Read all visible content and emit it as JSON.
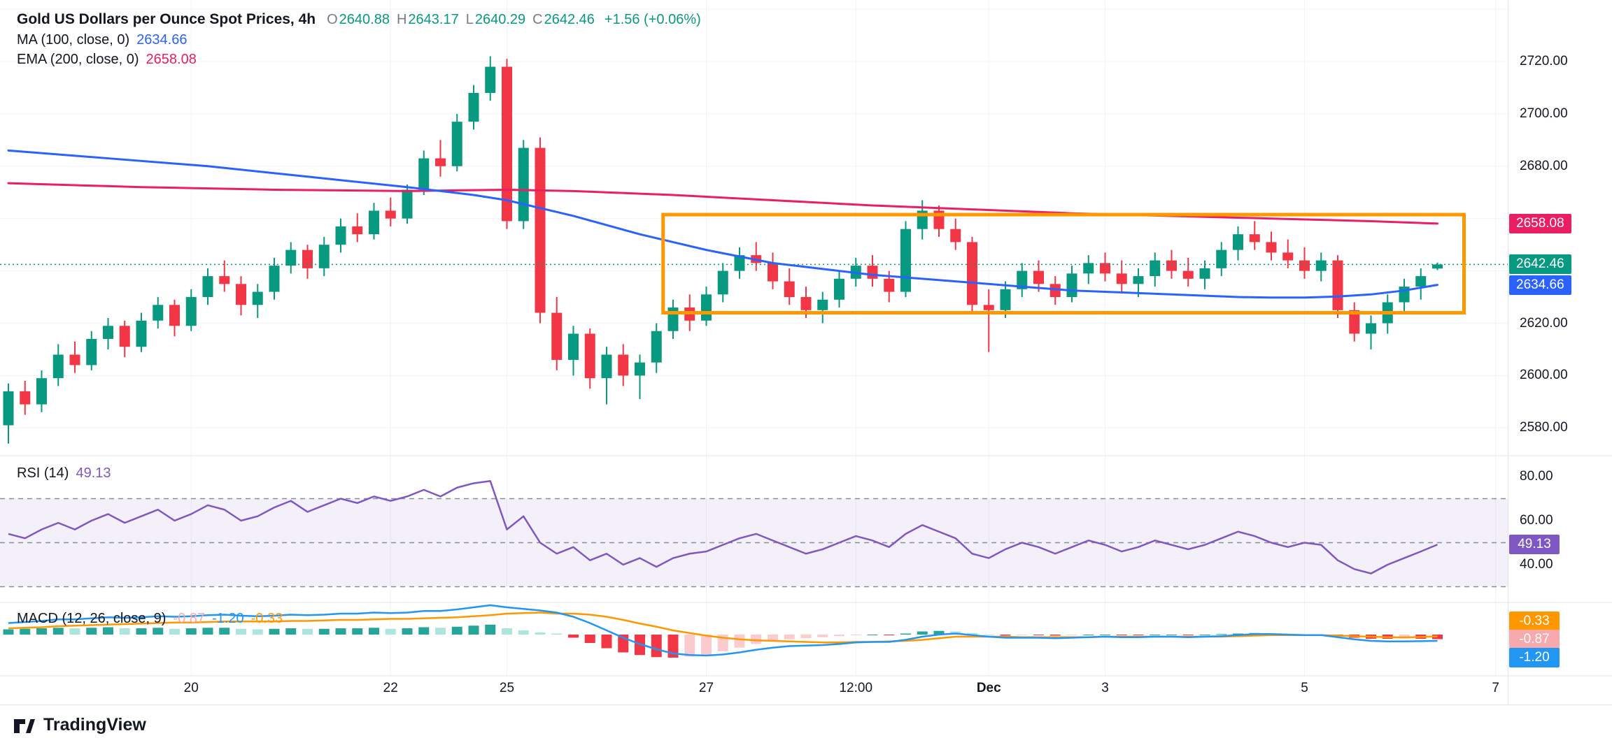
{
  "main_header": {
    "title": "Gold US Dollars per Ounce Spot Prices, 4h",
    "ohlc_labels": {
      "o": "O",
      "h": "H",
      "l": "L",
      "c": "C"
    },
    "ohlc": {
      "o": "2640.88",
      "h": "2643.17",
      "l": "2640.29",
      "c": "2642.46"
    },
    "change": "+1.56 (+0.06%)",
    "ma": {
      "label": "MA (100, close, 0)",
      "value": "2634.66"
    },
    "ema": {
      "label": "EMA (200, close, 0)",
      "value": "2658.08"
    }
  },
  "rsi_header": {
    "label": "RSI (14)",
    "value": "49.13"
  },
  "macd_header": {
    "label": "MACD (12, 26, close, 9)",
    "hist": "-0.87",
    "macd": "-1.20",
    "signal": "-0.33"
  },
  "scale_badges": {
    "ema": "2658.08",
    "close": "2642.46",
    "ma": "2634.66",
    "rsi": "49.13",
    "signal": "-0.33",
    "hist": "-0.87",
    "macd": "-1.20"
  },
  "footer": {
    "brand": "TradingView"
  },
  "colors": {
    "up": "#089981",
    "down": "#f23645",
    "ma": "#2962ff",
    "ema": "#e91e63",
    "rsi": "#7e57c2",
    "macd": "#2196f3",
    "signal": "#ff9800",
    "hist_up": "#26a69a",
    "hist_up_weak": "#ace5dc",
    "hist_down": "#f23645",
    "hist_down_weak": "#fccbcd",
    "rect": "#ff9800",
    "grid": "#f0f3fa",
    "divider": "#e0e3eb",
    "dashed": "#8a8e9b",
    "band_fill": "rgba(126,87,194,0.09)",
    "axis_text": "#131722",
    "header_text": "#131722",
    "muted_text": "#787b86",
    "close_line": "#089981",
    "background": "#ffffff",
    "badge_close_bg": "#089981",
    "badge_ma_bg": "#2962ff",
    "badge_ema_bg": "#e91e63",
    "badge_rsi_bg": "#7e57c2",
    "badge_signal_bg": "#ff9800",
    "badge_hist_bg": "#f8a9ae",
    "badge_macd_bg": "#2196f3"
  },
  "chart_data": {
    "type": "candlestick",
    "title": "Gold US Dollars per Ounce Spot Prices",
    "interval": "4h",
    "price_range_visible": [
      2568,
      2744
    ],
    "last_close": 2642.46,
    "last_candle": {
      "open": 2640.88,
      "high": 2643.17,
      "low": 2640.29,
      "close": 2642.46,
      "change": 1.56,
      "change_pct": 0.06
    },
    "indicator_values": {
      "ma100": 2634.66,
      "ema200": 2658.08,
      "rsi": 49.13,
      "macd": -1.2,
      "signal": -0.33,
      "histogram": -0.87
    },
    "price_axis_ticks": [
      {
        "label": "2720.00",
        "value": 2720
      },
      {
        "label": "2700.00",
        "value": 2700
      },
      {
        "label": "2680.00",
        "value": 2680
      },
      {
        "label": "2620.00",
        "value": 2620
      },
      {
        "label": "2600.00",
        "value": 2600
      },
      {
        "label": "2580.00",
        "value": 2580
      }
    ],
    "rsi_axis_ticks": [
      {
        "label": "80.00",
        "value": 80
      },
      {
        "label": "60.00",
        "value": 60
      },
      {
        "label": "40.00",
        "value": 40
      }
    ],
    "rsi_levels": [
      70,
      50,
      30
    ],
    "rsi_band": [
      30,
      70
    ],
    "time_ticks": [
      {
        "label": "20",
        "i": 11,
        "bold": false
      },
      {
        "label": "22",
        "i": 23,
        "bold": false
      },
      {
        "label": "25",
        "i": 30,
        "bold": false
      },
      {
        "label": "27",
        "i": 42,
        "bold": false
      },
      {
        "label": "12:00",
        "i": 51,
        "bold": false
      },
      {
        "label": "Dec",
        "i": 59,
        "bold": true
      },
      {
        "label": "3",
        "i": 66,
        "bold": false
      },
      {
        "label": "5",
        "i": 78,
        "bold": false
      },
      {
        "label": "7",
        "i": 89.5,
        "bold": false
      }
    ],
    "annotations": {
      "rectangle": {
        "i1": 39.4,
        "i2": 87.6,
        "price_top": 2661.5,
        "price_bottom": 2624
      }
    },
    "candles": [
      [
        2581,
        2597,
        2574,
        2594
      ],
      [
        2594,
        2598,
        2585,
        2589
      ],
      [
        2589,
        2602,
        2586,
        2599
      ],
      [
        2599,
        2612,
        2596,
        2608
      ],
      [
        2608,
        2613,
        2601,
        2604
      ],
      [
        2604,
        2617,
        2602,
        2614
      ],
      [
        2614,
        2622,
        2610,
        2619
      ],
      [
        2619,
        2621,
        2607,
        2611
      ],
      [
        2611,
        2624,
        2609,
        2621
      ],
      [
        2621,
        2630,
        2618,
        2627
      ],
      [
        2627,
        2629,
        2615,
        2619
      ],
      [
        2619,
        2633,
        2617,
        2630
      ],
      [
        2630,
        2641,
        2627,
        2638
      ],
      [
        2638,
        2644,
        2632,
        2635
      ],
      [
        2635,
        2638,
        2623,
        2627
      ],
      [
        2627,
        2635,
        2622,
        2632
      ],
      [
        2632,
        2645,
        2629,
        2642
      ],
      [
        2642,
        2651,
        2639,
        2648
      ],
      [
        2648,
        2650,
        2637,
        2641
      ],
      [
        2641,
        2653,
        2638,
        2650
      ],
      [
        2650,
        2660,
        2647,
        2657
      ],
      [
        2657,
        2662,
        2651,
        2654
      ],
      [
        2654,
        2666,
        2652,
        2663
      ],
      [
        2663,
        2668,
        2657,
        2660
      ],
      [
        2660,
        2673,
        2658,
        2671
      ],
      [
        2671,
        2686,
        2669,
        2683
      ],
      [
        2683,
        2690,
        2676,
        2680
      ],
      [
        2680,
        2700,
        2678,
        2697
      ],
      [
        2697,
        2711,
        2694,
        2708
      ],
      [
        2708,
        2722,
        2705,
        2718
      ],
      [
        2718,
        2721,
        2656,
        2659
      ],
      [
        2659,
        2690,
        2656,
        2687
      ],
      [
        2687,
        2691,
        2620,
        2624
      ],
      [
        2624,
        2630,
        2602,
        2606
      ],
      [
        2606,
        2619,
        2600,
        2616
      ],
      [
        2616,
        2618,
        2595,
        2599
      ],
      [
        2599,
        2611,
        2589,
        2608
      ],
      [
        2608,
        2612,
        2596,
        2600
      ],
      [
        2600,
        2608,
        2591,
        2605
      ],
      [
        2605,
        2620,
        2601,
        2617
      ],
      [
        2617,
        2629,
        2614,
        2626
      ],
      [
        2626,
        2631,
        2617,
        2621
      ],
      [
        2621,
        2634,
        2619,
        2631
      ],
      [
        2631,
        2643,
        2628,
        2640
      ],
      [
        2640,
        2649,
        2637,
        2646
      ],
      [
        2646,
        2651,
        2640,
        2643
      ],
      [
        2643,
        2647,
        2633,
        2636
      ],
      [
        2636,
        2641,
        2627,
        2630
      ],
      [
        2630,
        2634,
        2622,
        2625
      ],
      [
        2625,
        2632,
        2620,
        2629
      ],
      [
        2629,
        2640,
        2626,
        2637
      ],
      [
        2637,
        2645,
        2634,
        2642
      ],
      [
        2642,
        2646,
        2634,
        2637
      ],
      [
        2637,
        2640,
        2628,
        2632
      ],
      [
        2632,
        2659,
        2630,
        2656
      ],
      [
        2656,
        2667,
        2652,
        2663
      ],
      [
        2663,
        2665,
        2653,
        2656
      ],
      [
        2656,
        2660,
        2648,
        2651
      ],
      [
        2651,
        2653,
        2624,
        2627
      ],
      [
        2627,
        2633,
        2609,
        2625
      ],
      [
        2625,
        2636,
        2622,
        2633
      ],
      [
        2633,
        2643,
        2630,
        2640
      ],
      [
        2640,
        2644,
        2632,
        2635
      ],
      [
        2635,
        2638,
        2627,
        2630
      ],
      [
        2630,
        2642,
        2628,
        2639
      ],
      [
        2639,
        2646,
        2635,
        2643
      ],
      [
        2643,
        2647,
        2636,
        2639
      ],
      [
        2639,
        2644,
        2632,
        2635
      ],
      [
        2635,
        2641,
        2630,
        2638
      ],
      [
        2638,
        2647,
        2634,
        2644
      ],
      [
        2644,
        2648,
        2637,
        2640
      ],
      [
        2640,
        2645,
        2634,
        2637
      ],
      [
        2637,
        2644,
        2633,
        2641
      ],
      [
        2641,
        2651,
        2638,
        2648
      ],
      [
        2648,
        2657,
        2644,
        2654
      ],
      [
        2654,
        2659,
        2648,
        2651
      ],
      [
        2651,
        2655,
        2644,
        2647
      ],
      [
        2647,
        2652,
        2641,
        2644
      ],
      [
        2644,
        2649,
        2637,
        2640
      ],
      [
        2640,
        2647,
        2636,
        2644
      ],
      [
        2644,
        2646,
        2622,
        2625
      ],
      [
        2625,
        2628,
        2613,
        2616
      ],
      [
        2616,
        2623,
        2610,
        2620
      ],
      [
        2620,
        2631,
        2616,
        2628
      ],
      [
        2628,
        2637,
        2624,
        2634
      ],
      [
        2634,
        2641,
        2629,
        2638
      ],
      [
        2640.88,
        2643.17,
        2640.29,
        2642.46
      ]
    ],
    "ma100": [
      [
        0,
        2686
      ],
      [
        6,
        2683
      ],
      [
        12,
        2680
      ],
      [
        18,
        2676
      ],
      [
        24,
        2672
      ],
      [
        28,
        2669
      ],
      [
        30,
        2667
      ],
      [
        32,
        2664
      ],
      [
        34,
        2661
      ],
      [
        36,
        2657.5
      ],
      [
        38,
        2654
      ],
      [
        40,
        2651
      ],
      [
        42,
        2648
      ],
      [
        44,
        2645.5
      ],
      [
        46,
        2643
      ],
      [
        48,
        2641.5
      ],
      [
        50,
        2640
      ],
      [
        52,
        2638.5
      ],
      [
        54,
        2637.5
      ],
      [
        56,
        2636.5
      ],
      [
        58,
        2635.5
      ],
      [
        60,
        2634.5
      ],
      [
        62,
        2633.5
      ],
      [
        64,
        2632.5
      ],
      [
        66,
        2632
      ],
      [
        68,
        2631.5
      ],
      [
        70,
        2631
      ],
      [
        72,
        2630.5
      ],
      [
        74,
        2630
      ],
      [
        76,
        2629.8
      ],
      [
        78,
        2629.8
      ],
      [
        80,
        2630.2
      ],
      [
        82,
        2631
      ],
      [
        84,
        2632.5
      ],
      [
        86,
        2634.66
      ]
    ],
    "ema200": [
      [
        0,
        2673.5
      ],
      [
        8,
        2672
      ],
      [
        16,
        2671
      ],
      [
        24,
        2670.5
      ],
      [
        30,
        2671
      ],
      [
        34,
        2670.5
      ],
      [
        40,
        2669
      ],
      [
        46,
        2667
      ],
      [
        52,
        2665
      ],
      [
        58,
        2663.5
      ],
      [
        64,
        2662
      ],
      [
        70,
        2661
      ],
      [
        76,
        2660
      ],
      [
        82,
        2659
      ],
      [
        86,
        2658.08
      ]
    ],
    "rsi": [
      54,
      52,
      56,
      59,
      56,
      60,
      63,
      59,
      62,
      65,
      60,
      63,
      67,
      65,
      60,
      62,
      66,
      69,
      64,
      67,
      70,
      68,
      71,
      69,
      71,
      74,
      71,
      75,
      77,
      78,
      56,
      62,
      50,
      45,
      48,
      42,
      45,
      40,
      43,
      39,
      43,
      45,
      46,
      49,
      52,
      54,
      51,
      48,
      45,
      47,
      50,
      53,
      51,
      48,
      54,
      58,
      55,
      52,
      45,
      43,
      47,
      50,
      48,
      45,
      48,
      51,
      49,
      46,
      48,
      51,
      49,
      47,
      49,
      52,
      55,
      53,
      50,
      48,
      50,
      49,
      42,
      38,
      36,
      40,
      43,
      46,
      49.13
    ],
    "macd": [
      2.2,
      2.4,
      2.6,
      2.9,
      2.9,
      3.1,
      3.3,
      3.2,
      3.3,
      3.5,
      3.4,
      3.5,
      3.7,
      3.8,
      3.6,
      3.5,
      3.6,
      3.8,
      3.7,
      3.8,
      4.0,
      4.0,
      4.2,
      4.1,
      4.2,
      4.5,
      4.5,
      4.8,
      5.2,
      5.6,
      5.2,
      4.9,
      4.6,
      4.2,
      3.4,
      2.2,
      0.8,
      -0.6,
      -1.8,
      -2.8,
      -3.6,
      -3.9,
      -4.0,
      -3.8,
      -3.4,
      -2.9,
      -2.5,
      -2.2,
      -2.1,
      -2.0,
      -1.8,
      -1.5,
      -1.4,
      -1.4,
      -1.0,
      -0.4,
      0.0,
      0.2,
      -0.1,
      -0.4,
      -0.6,
      -0.6,
      -0.6,
      -0.7,
      -0.6,
      -0.5,
      -0.4,
      -0.5,
      -0.5,
      -0.4,
      -0.4,
      -0.5,
      -0.4,
      -0.3,
      -0.1,
      0.1,
      0.1,
      0.0,
      -0.1,
      -0.1,
      -0.5,
      -0.9,
      -1.2,
      -1.3,
      -1.3,
      -1.25,
      -1.2
    ],
    "macd_hist": [
      1.0,
      1.1,
      1.2,
      1.3,
      1.2,
      1.3,
      1.4,
      1.2,
      1.2,
      1.3,
      1.1,
      1.2,
      1.3,
      1.3,
      1.1,
      1.0,
      1.1,
      1.2,
      1.1,
      1.1,
      1.2,
      1.2,
      1.3,
      1.1,
      1.2,
      1.4,
      1.3,
      1.5,
      1.7,
      1.9,
      1.2,
      0.8,
      0.4,
      0.2,
      -0.6,
      -1.6,
      -2.6,
      -3.4,
      -3.9,
      -4.3,
      -4.4,
      -4.2,
      -3.8,
      -3.2,
      -2.5,
      -1.8,
      -1.3,
      -0.9,
      -0.7,
      -0.5,
      -0.3,
      -0.1,
      0.0,
      -0.1,
      0.2,
      0.6,
      0.7,
      0.6,
      0.3,
      0.0,
      -0.2,
      -0.1,
      -0.1,
      -0.2,
      -0.1,
      0.0,
      0.0,
      -0.1,
      -0.1,
      0.0,
      0.0,
      -0.1,
      0.0,
      0.1,
      0.2,
      0.3,
      0.2,
      0.1,
      0.0,
      0.0,
      -0.3,
      -0.6,
      -0.8,
      -0.8,
      -0.75,
      -0.8,
      -0.87
    ]
  }
}
